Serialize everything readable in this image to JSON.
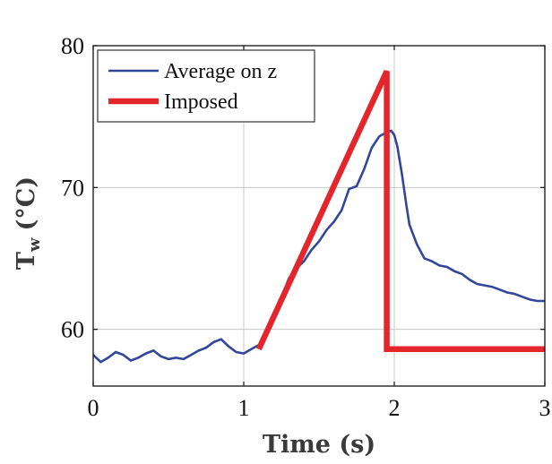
{
  "chart_data": {
    "type": "line",
    "xlabel": "Time (s)",
    "ylabel_main": "T",
    "ylabel_sub": "w",
    "ylabel_unit": "(°C)",
    "xlim": [
      0,
      3
    ],
    "ylim": [
      56,
      80
    ],
    "x_ticks": [
      0,
      1,
      2,
      3
    ],
    "x_tick_labels": [
      "0",
      "1",
      "2",
      "3"
    ],
    "y_ticks": [
      60,
      70,
      80
    ],
    "y_tick_labels": [
      "60",
      "70",
      "80"
    ],
    "grid": true,
    "legend_position": "top-left",
    "series": [
      {
        "name": "Average on z",
        "color": "#33479a",
        "x": [
          0.0,
          0.05,
          0.1,
          0.15,
          0.2,
          0.25,
          0.3,
          0.35,
          0.4,
          0.45,
          0.5,
          0.55,
          0.6,
          0.65,
          0.7,
          0.75,
          0.8,
          0.85,
          0.9,
          0.95,
          1.0,
          1.05,
          1.1,
          1.15,
          1.2,
          1.25,
          1.3,
          1.35,
          1.4,
          1.45,
          1.5,
          1.55,
          1.6,
          1.65,
          1.7,
          1.75,
          1.8,
          1.85,
          1.9,
          1.95,
          1.98,
          2.0,
          2.02,
          2.05,
          2.08,
          2.1,
          2.15,
          2.2,
          2.25,
          2.3,
          2.35,
          2.4,
          2.45,
          2.5,
          2.55,
          2.6,
          2.65,
          2.7,
          2.75,
          2.8,
          2.85,
          2.9,
          2.95,
          3.0
        ],
        "values": [
          58.2,
          57.7,
          58.0,
          58.4,
          58.2,
          57.8,
          58.0,
          58.3,
          58.5,
          58.1,
          57.9,
          58.0,
          57.9,
          58.2,
          58.5,
          58.7,
          59.1,
          59.3,
          58.8,
          58.4,
          58.3,
          58.6,
          58.9,
          59.6,
          60.7,
          62.2,
          63.6,
          64.3,
          64.8,
          65.6,
          66.2,
          67.0,
          67.6,
          68.4,
          69.9,
          70.1,
          71.3,
          72.8,
          73.6,
          73.9,
          74.0,
          73.7,
          72.9,
          71.0,
          68.8,
          67.4,
          66.0,
          65.0,
          64.8,
          64.5,
          64.4,
          64.1,
          63.9,
          63.5,
          63.2,
          63.1,
          63.0,
          62.8,
          62.6,
          62.5,
          62.3,
          62.1,
          62.0,
          62.0
        ]
      },
      {
        "name": "Imposed",
        "color": "#e3262c",
        "x": [
          1.1,
          1.95,
          1.95,
          3.0
        ],
        "values": [
          58.6,
          78.2,
          58.6,
          58.6
        ]
      }
    ]
  }
}
